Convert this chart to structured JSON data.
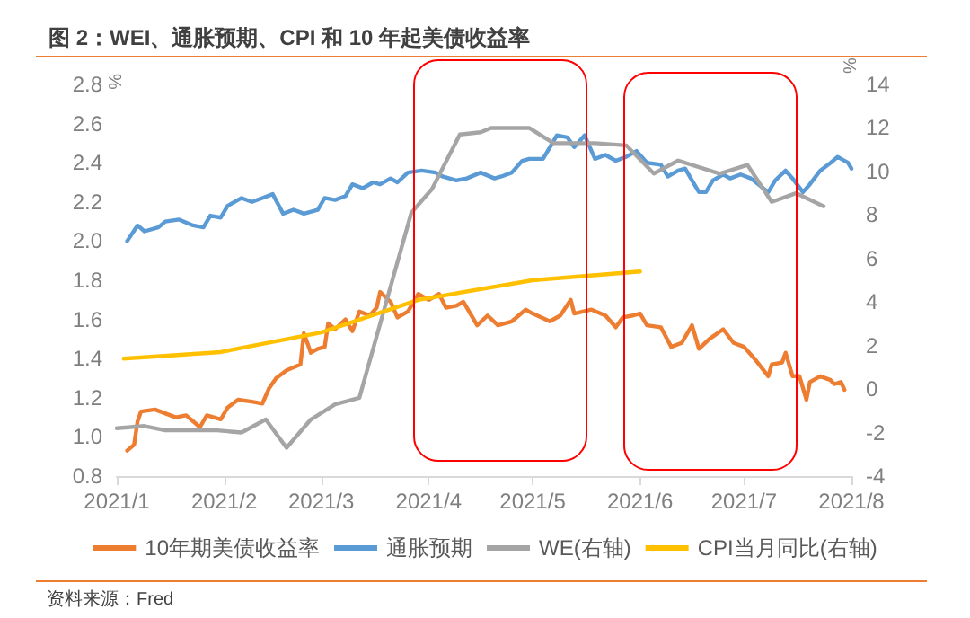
{
  "chart_data": {
    "type": "line",
    "title": "图 2：WEI、通胀预期、CPI 和 10 年起美债收益率",
    "ylabel": "%",
    "y2label": "%",
    "annotations": [
      "资料来源：Fred"
    ],
    "xlim": [
      "2021-01-01",
      "2021-08-01"
    ],
    "xticks": [
      {
        "value": "2021-01-01",
        "label": "2021/1"
      },
      {
        "value": "2021-02-01",
        "label": "2021/2"
      },
      {
        "value": "2021-03-01",
        "label": "2021/3"
      },
      {
        "value": "2021-04-01",
        "label": "2021/4"
      },
      {
        "value": "2021-05-01",
        "label": "2021/5"
      },
      {
        "value": "2021-06-01",
        "label": "2021/6"
      },
      {
        "value": "2021-07-01",
        "label": "2021/7"
      },
      {
        "value": "2021-08-01",
        "label": "2021/8"
      }
    ],
    "ylim": [
      0.8,
      2.8
    ],
    "yticks": [
      0.8,
      {
        "value": 1,
        "label": "1.0"
      },
      1.2,
      1.4,
      1.6,
      1.8,
      {
        "value": 2,
        "label": "2.0"
      },
      2.2,
      2.4,
      2.6,
      2.8
    ],
    "y2lim": [
      -4,
      14
    ],
    "y2ticks": [
      -4,
      -2,
      0,
      2,
      4,
      6,
      8,
      10,
      12,
      14
    ],
    "grid": false,
    "legend": "bottom",
    "marker": "none",
    "line_style": "solid",
    "series": [
      {
        "name": "10年期美债收益率",
        "color": "#ed7d31",
        "x": [
          "2021-01-04",
          "2021-01-06",
          "2021-01-07",
          "2021-01-08",
          "2021-01-12",
          "2021-01-18",
          "2021-01-21",
          "2021-01-25",
          "2021-01-27",
          "2021-01-31",
          "2021-02-02",
          "2021-02-05",
          "2021-02-09",
          "2021-02-12",
          "2021-02-14",
          "2021-02-16",
          "2021-02-19",
          "2021-02-23",
          "2021-02-24",
          "2021-02-26",
          "2021-02-28",
          "2021-03-02",
          "2021-03-03",
          "2021-03-05",
          "2021-03-08",
          "2021-03-10",
          "2021-03-12",
          "2021-03-15",
          "2021-03-17",
          "2021-03-18",
          "2021-03-21",
          "2021-03-23",
          "2021-03-26",
          "2021-03-29",
          "2021-04-01",
          "2021-04-04",
          "2021-04-06",
          "2021-04-09",
          "2021-04-11",
          "2021-04-15",
          "2021-04-18",
          "2021-04-21",
          "2021-04-25",
          "2021-04-29",
          "2021-05-01",
          "2021-05-06",
          "2021-05-09",
          "2021-05-12",
          "2021-05-13",
          "2021-05-18",
          "2021-05-22",
          "2021-05-25",
          "2021-05-27",
          "2021-05-30",
          "2021-06-01",
          "2021-06-03",
          "2021-06-07",
          "2021-06-10",
          "2021-06-13",
          "2021-06-16",
          "2021-06-18",
          "2021-06-21",
          "2021-06-25",
          "2021-06-28",
          "2021-07-01",
          "2021-07-04",
          "2021-07-08",
          "2021-07-09",
          "2021-07-12",
          "2021-07-13",
          "2021-07-15",
          "2021-07-17",
          "2021-07-19",
          "2021-07-20",
          "2021-07-23",
          "2021-07-26",
          "2021-07-27",
          "2021-07-29",
          "2021-07-30"
        ],
        "values": [
          0.93,
          0.96,
          1.08,
          1.13,
          1.14,
          1.1,
          1.11,
          1.05,
          1.11,
          1.09,
          1.15,
          1.19,
          1.18,
          1.17,
          1.25,
          1.3,
          1.34,
          1.37,
          1.53,
          1.43,
          1.45,
          1.46,
          1.58,
          1.55,
          1.6,
          1.54,
          1.64,
          1.62,
          1.66,
          1.74,
          1.69,
          1.61,
          1.64,
          1.73,
          1.7,
          1.73,
          1.66,
          1.67,
          1.69,
          1.57,
          1.62,
          1.57,
          1.59,
          1.65,
          1.63,
          1.59,
          1.62,
          1.7,
          1.63,
          1.65,
          1.62,
          1.56,
          1.61,
          1.62,
          1.63,
          1.57,
          1.56,
          1.46,
          1.48,
          1.57,
          1.45,
          1.5,
          1.55,
          1.48,
          1.46,
          1.4,
          1.31,
          1.37,
          1.38,
          1.43,
          1.31,
          1.31,
          1.19,
          1.28,
          1.31,
          1.29,
          1.27,
          1.28,
          1.24
        ]
      },
      {
        "name": "通胀预期",
        "color": "#5b9bd5",
        "x": [
          "2021-01-04",
          "2021-01-07",
          "2021-01-09",
          "2021-01-13",
          "2021-01-15",
          "2021-01-19",
          "2021-01-23",
          "2021-01-26",
          "2021-01-28",
          "2021-01-31",
          "2021-02-02",
          "2021-02-06",
          "2021-02-09",
          "2021-02-12",
          "2021-02-15",
          "2021-02-18",
          "2021-02-21",
          "2021-02-24",
          "2021-02-28",
          "2021-03-02",
          "2021-03-05",
          "2021-03-08",
          "2021-03-10",
          "2021-03-13",
          "2021-03-16",
          "2021-03-18",
          "2021-03-21",
          "2021-03-23",
          "2021-03-26",
          "2021-03-30",
          "2021-04-03",
          "2021-04-05",
          "2021-04-09",
          "2021-04-12",
          "2021-04-16",
          "2021-04-20",
          "2021-04-22",
          "2021-04-25",
          "2021-04-28",
          "2021-04-30",
          "2021-05-04",
          "2021-05-06",
          "2021-05-08",
          "2021-05-11",
          "2021-05-13",
          "2021-05-16",
          "2021-05-19",
          "2021-05-22",
          "2021-05-25",
          "2021-05-28",
          "2021-05-31",
          "2021-06-03",
          "2021-06-07",
          "2021-06-09",
          "2021-06-12",
          "2021-06-14",
          "2021-06-18",
          "2021-06-20",
          "2021-06-22",
          "2021-06-25",
          "2021-06-27",
          "2021-06-30",
          "2021-07-03",
          "2021-07-08",
          "2021-07-10",
          "2021-07-13",
          "2021-07-15",
          "2021-07-18",
          "2021-07-20",
          "2021-07-23",
          "2021-07-26",
          "2021-07-28",
          "2021-07-31",
          "2021-08-01"
        ],
        "values": [
          2.0,
          2.08,
          2.05,
          2.07,
          2.1,
          2.11,
          2.08,
          2.07,
          2.13,
          2.12,
          2.18,
          2.22,
          2.2,
          2.22,
          2.24,
          2.14,
          2.16,
          2.14,
          2.16,
          2.22,
          2.21,
          2.23,
          2.29,
          2.27,
          2.3,
          2.29,
          2.32,
          2.3,
          2.35,
          2.36,
          2.35,
          2.33,
          2.31,
          2.32,
          2.35,
          2.32,
          2.33,
          2.35,
          2.41,
          2.42,
          2.42,
          2.48,
          2.54,
          2.53,
          2.48,
          2.54,
          2.42,
          2.44,
          2.41,
          2.43,
          2.46,
          2.4,
          2.39,
          2.33,
          2.36,
          2.37,
          2.25,
          2.25,
          2.31,
          2.34,
          2.32,
          2.34,
          2.32,
          2.25,
          2.31,
          2.36,
          2.32,
          2.25,
          2.29,
          2.36,
          2.4,
          2.43,
          2.4,
          2.37
        ]
      },
      {
        "name": "WE(右轴)",
        "color": "#a5a5a5",
        "axis": "y2",
        "x": [
          "2021-01-01",
          "2021-01-09",
          "2021-01-15",
          "2021-01-30",
          "2021-02-06",
          "2021-02-13",
          "2021-02-19",
          "2021-02-26",
          "2021-03-05",
          "2021-03-12",
          "2021-03-27",
          "2021-04-02",
          "2021-04-10",
          "2021-04-16",
          "2021-04-19",
          "2021-04-30",
          "2021-05-07",
          "2021-05-19",
          "2021-05-28",
          "2021-06-05",
          "2021-06-12",
          "2021-06-24",
          "2021-07-02",
          "2021-07-09",
          "2021-07-16",
          "2021-07-24"
        ],
        "values": [
          -1.8,
          -1.7,
          -1.9,
          -1.9,
          -2.0,
          -1.4,
          -2.7,
          -1.4,
          -0.7,
          -0.4,
          8.1,
          9.2,
          11.7,
          11.8,
          12.0,
          12.0,
          11.3,
          11.3,
          11.2,
          9.9,
          10.5,
          9.9,
          10.3,
          8.6,
          9.0,
          8.4
        ]
      },
      {
        "name": "CPI当月同比(右轴)",
        "color": "#ffc000",
        "axis": "y2",
        "x": [
          "2021-01-03",
          "2021-01-31",
          "2021-03-01",
          "2021-03-29",
          "2021-05-01",
          "2021-06-01"
        ],
        "values": [
          1.4,
          1.7,
          2.6,
          4.1,
          5.0,
          5.4
        ]
      }
    ]
  }
}
